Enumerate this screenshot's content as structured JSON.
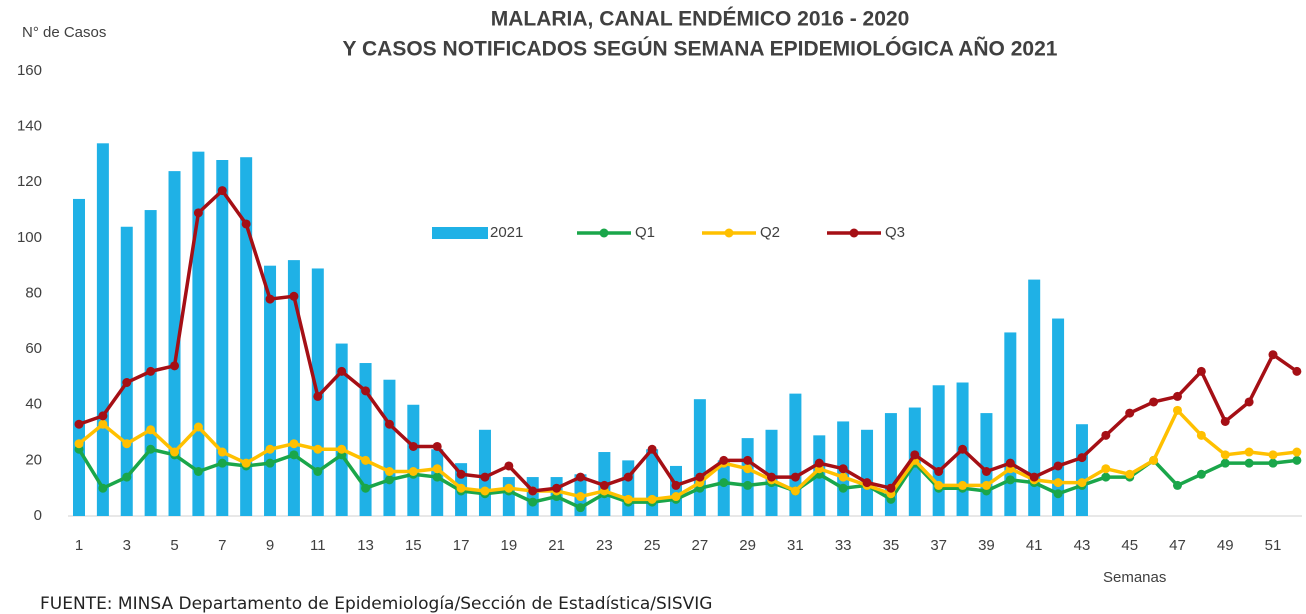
{
  "chart_data": {
    "type": "bar_line",
    "title": [
      "MALARIA, CANAL ENDÉMICO 2016 - 2020",
      "Y CASOS NOTIFICADOS SEGÚN SEMANA EPIDEMIOLÓGICA AÑO 2021"
    ],
    "y_label": "N° de Casos",
    "x_label": "Semanas",
    "source": "FUENTE: MINSA  Departamento  de Epidemiología/Sección  de Estadística/SISVIG",
    "categories": [
      "1",
      null,
      "3",
      null,
      "5",
      null,
      "7",
      null,
      "9",
      null,
      "11",
      null,
      "13",
      null,
      "15",
      null,
      "17",
      null,
      "19",
      null,
      "21",
      null,
      "23",
      null,
      "25",
      null,
      "27",
      null,
      "29",
      null,
      "31",
      null,
      "33",
      null,
      "35",
      null,
      "37",
      null,
      "39",
      null,
      "41",
      null,
      "43",
      null,
      "45",
      null,
      "47",
      null,
      "49",
      null,
      "51",
      null
    ],
    "series": [
      {
        "name": "2021",
        "kind": "bar",
        "color": "#1fb1e6",
        "values": [
          114,
          134,
          104,
          110,
          124,
          131,
          128,
          129,
          90,
          92,
          89,
          62,
          55,
          49,
          40,
          24,
          19,
          31,
          14,
          14,
          14,
          15,
          23,
          20,
          24,
          18,
          42,
          20,
          28,
          31,
          44,
          29,
          34,
          31,
          37,
          39,
          47,
          48,
          37,
          66,
          85,
          71,
          33,
          null,
          null,
          null,
          null,
          null,
          null,
          null,
          null,
          null
        ]
      },
      {
        "name": "Q1",
        "kind": "line",
        "color": "#1aa64a",
        "values": [
          24,
          10,
          14,
          24,
          22,
          16,
          19,
          18,
          19,
          22,
          16,
          22,
          10,
          13,
          15,
          14,
          9,
          8,
          9,
          5,
          7,
          3,
          8,
          5,
          5,
          6,
          10,
          12,
          11,
          12,
          9,
          15,
          10,
          11,
          6,
          19,
          10,
          10,
          9,
          13,
          12,
          8,
          11,
          14,
          14,
          20,
          11,
          15,
          19,
          19,
          19,
          20
        ]
      },
      {
        "name": "Q2",
        "kind": "line",
        "color": "#ffc000",
        "values": [
          26,
          33,
          26,
          31,
          23,
          32,
          23,
          19,
          24,
          26,
          24,
          24,
          20,
          16,
          16,
          17,
          10,
          9,
          10,
          9,
          9,
          7,
          9,
          6,
          6,
          7,
          12,
          19,
          17,
          13,
          9,
          17,
          14,
          11,
          8,
          20,
          11,
          11,
          11,
          17,
          13,
          12,
          12,
          17,
          15,
          20,
          38,
          29,
          22,
          23,
          22,
          23
        ]
      },
      {
        "name": "Q3",
        "kind": "line",
        "color": "#a50f15",
        "values": [
          33,
          36,
          48,
          52,
          54,
          109,
          117,
          105,
          78,
          79,
          43,
          52,
          45,
          33,
          25,
          25,
          15,
          14,
          18,
          9,
          10,
          14,
          11,
          14,
          24,
          11,
          14,
          20,
          20,
          14,
          14,
          19,
          17,
          12,
          10,
          22,
          16,
          24,
          16,
          19,
          14,
          18,
          21,
          29,
          37,
          41,
          43,
          52,
          34,
          41,
          58,
          52
        ]
      }
    ],
    "ylim": [
      0,
      160
    ],
    "yticks": [
      0,
      20,
      40,
      60,
      80,
      100,
      120,
      140,
      160
    ],
    "grid": false,
    "legend": "center"
  }
}
